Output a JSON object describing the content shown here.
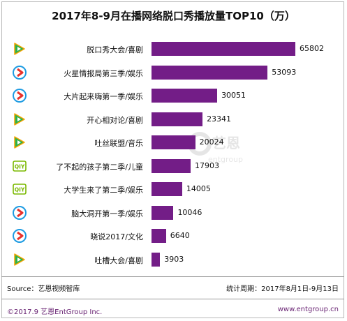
{
  "title": "2017年8-9月在播网络脱口秀播放量TOP10（万）",
  "source": "Source：艺恩视频智库",
  "period": "统计周期：2017年8月1日-9月13日",
  "copyright": "©2017.9  艺恩EntGroup Inc.",
  "website": "www.entgroup.cn",
  "watermark": {
    "cn": "艺恩",
    "en": "entgroup"
  },
  "colors": {
    "bar": "#731d87",
    "tencent": "#2bb24c",
    "youku": "#e8312b",
    "iqiyi": "#7ab800"
  },
  "chart_data": {
    "type": "bar",
    "orientation": "horizontal",
    "categories": [
      "脱口秀大会/喜剧",
      "火星情报局第三季/娱乐",
      "大片起来嗨第一季/娱乐",
      "开心相对论/喜剧",
      "吐丝联盟/音乐",
      "了不起的孩子第二季/儿童",
      "大学生来了第二季/娱乐",
      "脑大洞开第一季/娱乐",
      "晓说2017/文化",
      "吐槽大会/喜剧"
    ],
    "values": [
      65802,
      53093,
      30051,
      23341,
      20024,
      17903,
      14005,
      10046,
      6640,
      3903
    ],
    "platform_icons": [
      "tencent-video-icon",
      "youku-icon",
      "youku-icon",
      "tencent-video-icon",
      "tencent-video-icon",
      "iqiyi-icon",
      "iqiyi-icon",
      "youku-icon",
      "youku-icon",
      "tencent-video-icon"
    ],
    "xlim": [
      0,
      70000
    ],
    "grid": false,
    "legend": "none"
  }
}
